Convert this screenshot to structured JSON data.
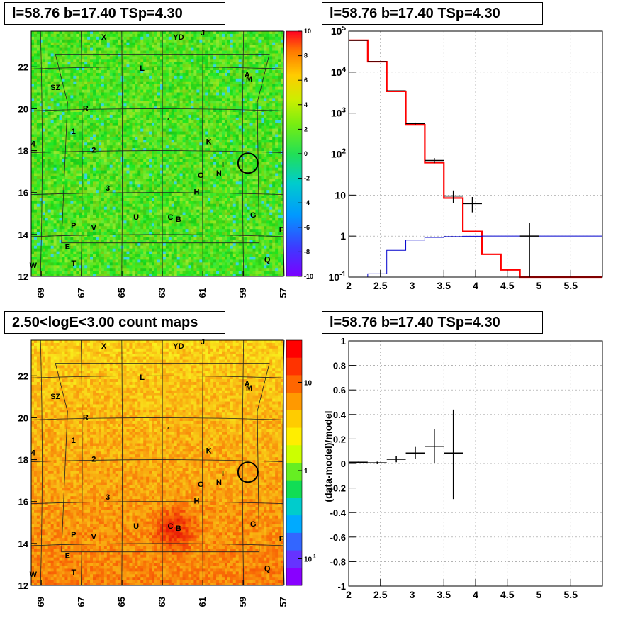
{
  "titles": {
    "map_top": "l=58.76 b=17.40 TSp=4.30",
    "spectrum": "l=58.76 b=17.40 TSp=4.30",
    "map_bottom": "2.50<logE<3.00 count maps",
    "residual": "l=58.76 b=17.40 TSp=4.30"
  },
  "colors": {
    "data": "#000000",
    "model": "#ff0000",
    "background": "#0000cc",
    "circle": "#000000"
  },
  "chart_data": [
    {
      "type": "heatmap",
      "name_ref": "map_top",
      "x_ticks": [
        "69",
        "67",
        "65",
        "63",
        "61",
        "59",
        "57"
      ],
      "y_ticks": [
        "12",
        "14",
        "16",
        "18",
        "20",
        "22"
      ],
      "xlim": [
        69.5,
        57
      ],
      "ylim": [
        12,
        23.7
      ],
      "colorbar": {
        "scale": "linear",
        "range": [
          -10,
          10
        ],
        "ticks": [
          "10",
          "8",
          "6",
          "4",
          "2",
          "0",
          "-2",
          "-4",
          "-6",
          "-8",
          "-10"
        ]
      },
      "circle": {
        "l": 58.76,
        "b": 17.4
      },
      "sources": [
        {
          "label": "X",
          "l": 65.9,
          "b": 23.3
        },
        {
          "label": "YD",
          "l": 62.2,
          "b": 23.3
        },
        {
          "label": "J",
          "l": 61.0,
          "b": 23.5
        },
        {
          "label": "L",
          "l": 64.0,
          "b": 21.8
        },
        {
          "label": "A",
          "l": 58.8,
          "b": 21.5
        },
        {
          "label": "M",
          "l": 58.7,
          "b": 21.3
        },
        {
          "label": "SZ",
          "l": 68.3,
          "b": 20.9
        },
        {
          "label": "R",
          "l": 66.8,
          "b": 19.9
        },
        {
          "label": "1",
          "l": 67.4,
          "b": 18.8
        },
        {
          "label": "4",
          "l": 69.4,
          "b": 18.2
        },
        {
          "label": "2",
          "l": 66.4,
          "b": 17.9
        },
        {
          "label": "K",
          "l": 60.7,
          "b": 18.3
        },
        {
          "label": "I",
          "l": 60.0,
          "b": 17.2
        },
        {
          "label": "N",
          "l": 60.2,
          "b": 16.8
        },
        {
          "label": "O",
          "l": 61.1,
          "b": 16.7
        },
        {
          "label": "3",
          "l": 65.7,
          "b": 16.1
        },
        {
          "label": "H",
          "l": 61.3,
          "b": 15.9
        },
        {
          "label": "G",
          "l": 58.5,
          "b": 14.8
        },
        {
          "label": "U",
          "l": 64.3,
          "b": 14.7
        },
        {
          "label": "C",
          "l": 62.6,
          "b": 14.7
        },
        {
          "label": "B",
          "l": 62.2,
          "b": 14.6
        },
        {
          "label": "P",
          "l": 67.4,
          "b": 14.3
        },
        {
          "label": "V",
          "l": 66.4,
          "b": 14.2
        },
        {
          "label": "F",
          "l": 57.1,
          "b": 14.1
        },
        {
          "label": "E",
          "l": 67.7,
          "b": 13.3
        },
        {
          "label": "Q",
          "l": 57.8,
          "b": 12.7
        },
        {
          "label": "T",
          "l": 67.4,
          "b": 12.5
        },
        {
          "label": "W",
          "l": 69.4,
          "b": 12.4
        }
      ]
    },
    {
      "type": "line",
      "name_ref": "spectrum",
      "xlim": [
        2,
        6
      ],
      "ylim": [
        0.1,
        100000
      ],
      "y_scale": "log",
      "x_ticks": [
        "2",
        "2.5",
        "3",
        "3.5",
        "4",
        "4.5",
        "5",
        "5.5"
      ],
      "y_ticks": [
        "10^-1",
        "1",
        "10",
        "10^2",
        "10^3",
        "10^4",
        "10^5"
      ],
      "grid": true,
      "series": [
        {
          "style": "step",
          "color": "#ff0000",
          "edges": [
            2.0,
            2.3,
            2.6,
            2.9,
            3.2,
            3.5,
            3.8,
            4.1,
            4.4,
            4.7,
            5.0,
            6.0
          ],
          "values": [
            60000,
            18000,
            3400,
            520,
            62,
            8.5,
            1.3,
            0.36,
            0.15,
            0.1,
            0.1
          ]
        },
        {
          "style": "step",
          "color": "#0000cc",
          "edges": [
            2.0,
            2.3,
            2.6,
            2.9,
            3.2,
            3.5,
            3.8,
            4.1,
            4.4,
            4.7,
            5.0,
            6.0
          ],
          "values": [
            0.05,
            0.12,
            0.45,
            0.8,
            0.93,
            0.97,
            0.99,
            1.0,
            1.0,
            1.0,
            1.0
          ]
        },
        {
          "style": "errorbar",
          "color": "#000000",
          "points": [
            {
              "x": 2.15,
              "y": 60000,
              "xerr": 0.15,
              "ylo": 59500,
              "yhi": 60500
            },
            {
              "x": 2.45,
              "y": 18000,
              "xerr": 0.15,
              "ylo": 17800,
              "yhi": 18200
            },
            {
              "x": 2.75,
              "y": 3500,
              "xerr": 0.15,
              "ylo": 3400,
              "yhi": 3600
            },
            {
              "x": 3.05,
              "y": 560,
              "xerr": 0.15,
              "ylo": 530,
              "yhi": 590
            },
            {
              "x": 3.35,
              "y": 70,
              "xerr": 0.15,
              "ylo": 60,
              "yhi": 80
            },
            {
              "x": 3.65,
              "y": 9.5,
              "xerr": 0.15,
              "ylo": 6.5,
              "yhi": 13
            },
            {
              "x": 3.95,
              "y": 6.2,
              "xerr": 0.15,
              "ylo": 3.8,
              "yhi": 9
            },
            {
              "x": 4.85,
              "y": 1.0,
              "xerr": 0.15,
              "ylo": 0.1,
              "yhi": 2.1
            }
          ]
        }
      ]
    },
    {
      "type": "heatmap",
      "name_ref": "map_bottom",
      "x_ticks": [
        "69",
        "67",
        "65",
        "63",
        "61",
        "59",
        "57"
      ],
      "y_ticks": [
        "12",
        "14",
        "16",
        "18",
        "20",
        "22"
      ],
      "xlim": [
        69.5,
        57
      ],
      "ylim": [
        12,
        23.7
      ],
      "colorbar": {
        "scale": "log",
        "range": [
          0.05,
          30
        ],
        "ticks": [
          "10",
          "1",
          "10^-1"
        ]
      },
      "circle": {
        "l": 58.76,
        "b": 17.4
      }
    },
    {
      "type": "scatter",
      "name_ref": "residual",
      "xlim": [
        2,
        6
      ],
      "ylim": [
        -1,
        1
      ],
      "ylabel": "(data-model)/model",
      "x_ticks": [
        "2",
        "2.5",
        "3",
        "3.5",
        "4",
        "4.5",
        "5",
        "5.5"
      ],
      "y_ticks": [
        "1",
        "0.8",
        "0.6",
        "0.4",
        "0.2",
        "0",
        "-0.2",
        "-0.4",
        "-0.6",
        "-0.8",
        "-1"
      ],
      "grid": true,
      "points": [
        {
          "x": 2.15,
          "y": 0.01,
          "xerr": 0.15,
          "ylo": 0.005,
          "yhi": 0.015
        },
        {
          "x": 2.45,
          "y": 0.005,
          "xerr": 0.15,
          "ylo": -0.005,
          "yhi": 0.015
        },
        {
          "x": 2.75,
          "y": 0.035,
          "xerr": 0.15,
          "ylo": 0.01,
          "yhi": 0.06
        },
        {
          "x": 3.05,
          "y": 0.085,
          "xerr": 0.15,
          "ylo": 0.035,
          "yhi": 0.135
        },
        {
          "x": 3.35,
          "y": 0.14,
          "xerr": 0.15,
          "ylo": 0.0,
          "yhi": 0.28
        },
        {
          "x": 3.65,
          "y": 0.085,
          "xerr": 0.15,
          "ylo": -0.29,
          "yhi": 0.44
        }
      ]
    }
  ]
}
